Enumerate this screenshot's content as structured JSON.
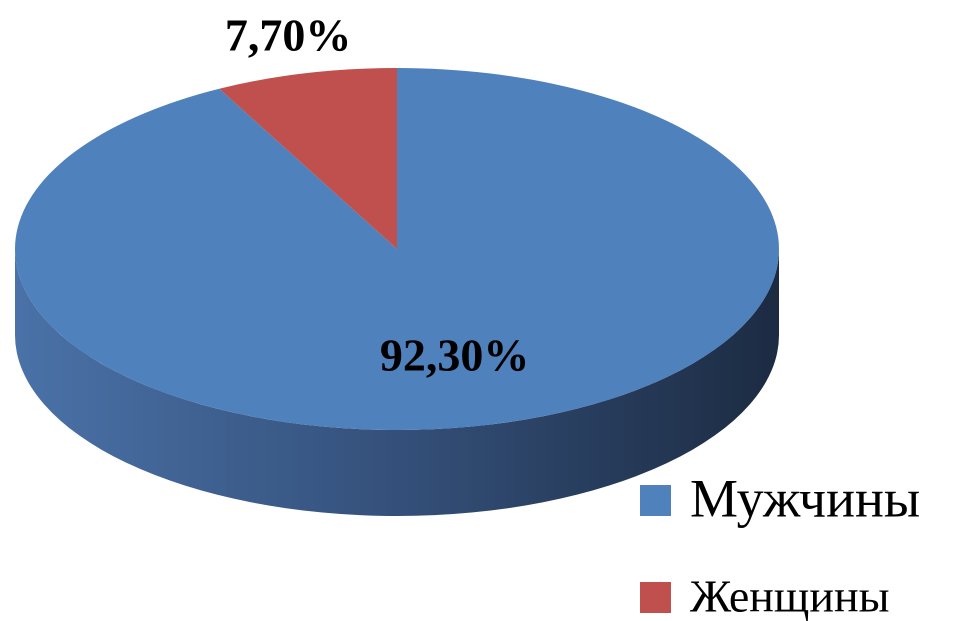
{
  "chart_data": {
    "type": "pie",
    "categories": [
      "Мужчины",
      "Женщины"
    ],
    "values": [
      92.3,
      7.7
    ],
    "value_labels": [
      "92,30%",
      "7,70%"
    ],
    "colors": [
      "#4f81bd",
      "#c0504d"
    ],
    "legend": "right"
  }
}
